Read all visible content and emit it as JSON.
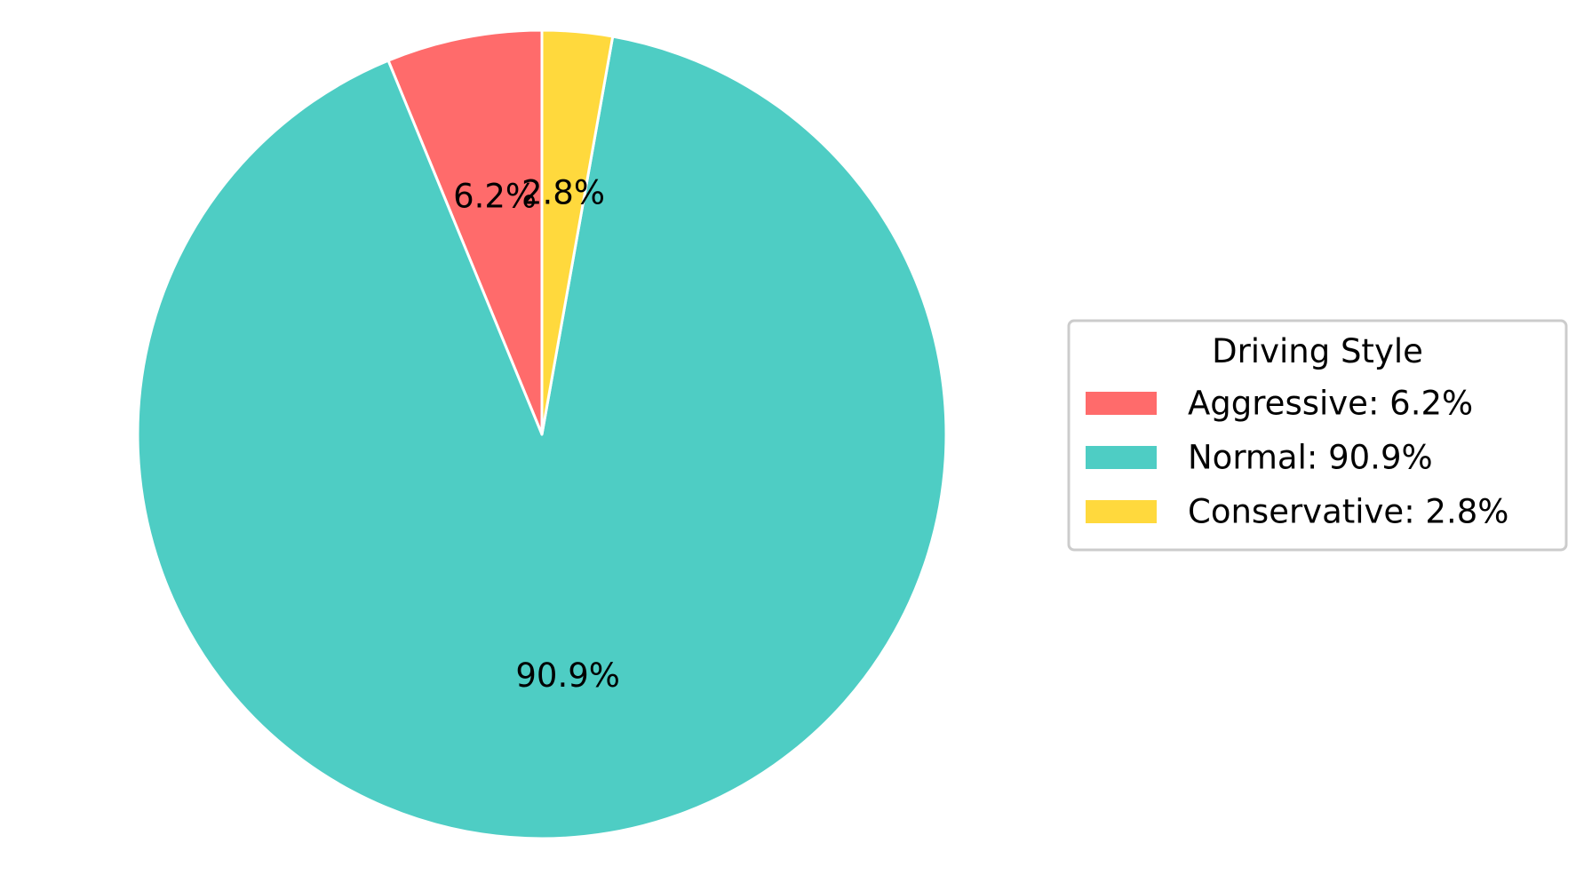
{
  "chart_data": {
    "type": "pie",
    "title": "",
    "slices": [
      {
        "label": "Aggressive",
        "value": 6.2,
        "pct_label": "6.2%",
        "legend_label": "Aggressive: 6.2%",
        "color": "#FF6B6B"
      },
      {
        "label": "Normal",
        "value": 90.9,
        "pct_label": "90.9%",
        "legend_label": "Normal: 90.9%",
        "color": "#4ECDC4"
      },
      {
        "label": "Conservative",
        "value": 2.8,
        "pct_label": "2.8%",
        "legend_label": "Conservative: 2.8%",
        "color": "#FFD93D"
      }
    ],
    "start_angle_deg": 90,
    "direction": "counterclockwise",
    "legend": {
      "title": "Driving Style",
      "placement": "right"
    }
  }
}
